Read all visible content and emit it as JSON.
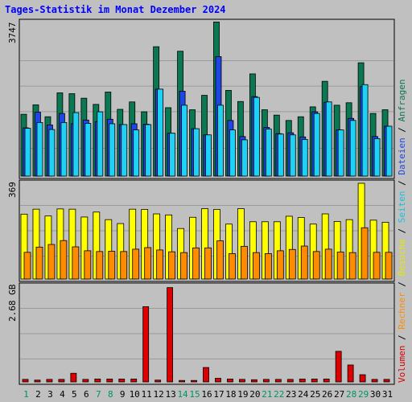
{
  "title": "Tages-Statistik im Monat Dezember 2024",
  "colors": {
    "background": "#c0c0c0",
    "title": "#0000ff",
    "anfragen": "#0a7850",
    "dateien": "#1e46e6",
    "seiten": "#1ed2f5",
    "besuche": "#ffff00",
    "rechner": "#ff8c00",
    "volumen": "#dc0000",
    "weekend_label": "#00935c",
    "weekday_label": "#000000"
  },
  "panel_labels": {
    "top_max": "3747",
    "mid_max": "369",
    "bottom_max": "2.68 GB"
  },
  "legend": {
    "volumen": "Volumen",
    "sep1": " / ",
    "rechner": "Rechner",
    "sep2": " / ",
    "besuche": "Besuche",
    "sep3": " / ",
    "seiten": "Seiten",
    "sep4": " / ",
    "dateien": "Dateien",
    "sep5": " / ",
    "anfragen": "Anfragen"
  },
  "chart_data": {
    "type": "bar",
    "title": "Tages-Statistik im Monat Dezember 2024",
    "categories": [
      "1",
      "2",
      "3",
      "4",
      "5",
      "6",
      "7",
      "8",
      "9",
      "10",
      "11",
      "12",
      "13",
      "14",
      "15",
      "16",
      "17",
      "18",
      "19",
      "20",
      "21",
      "22",
      "23",
      "24",
      "25",
      "26",
      "27",
      "28",
      "29",
      "30",
      "31"
    ],
    "weekend_days": [
      1,
      7,
      8,
      14,
      15,
      21,
      22,
      28,
      29
    ],
    "panels": [
      {
        "max_label": "3747",
        "ylim": [
          0,
          3747
        ],
        "series": [
          {
            "name": "Anfragen",
            "values": [
              1500,
              1730,
              1440,
              2020,
              2000,
              1890,
              1740,
              2040,
              1620,
              1800,
              1560,
              3140,
              1660,
              3030,
              1610,
              1960,
              3740,
              2080,
              1810,
              2480,
              1610,
              1480,
              1350,
              1440,
              1680,
              2300,
              1720,
              1780,
              2750,
              1520,
              1610
            ]
          },
          {
            "name": "Dateien",
            "values": [
              1170,
              1550,
              1240,
              1520,
              1270,
              1360,
              1320,
              1380,
              1250,
              1270,
              1260,
              2110,
              1040,
              2060,
              1150,
              1000,
              2900,
              1350,
              960,
              1930,
              1180,
              1030,
              1050,
              950,
              1560,
              1790,
              1120,
              1400,
              2170,
              960,
              1210
            ]
          },
          {
            "name": "Seiten",
            "values": [
              1160,
              1300,
              1130,
              1300,
              1540,
              1280,
              1560,
              1270,
              1250,
              1120,
              1250,
              2110,
              1040,
              1720,
              1150,
              1000,
              1720,
              1120,
              880,
              1910,
              1140,
              1020,
              1000,
              890,
              1520,
              1800,
              1120,
              1350,
              2220,
              910,
              1210
            ]
          }
        ]
      },
      {
        "max_label": "369",
        "ylim": [
          0,
          369
        ],
        "series": [
          {
            "name": "Besuche",
            "values": [
              248,
              267,
              241,
              268,
              267,
              237,
              256,
              227,
              212,
              267,
              266,
              249,
              245,
              193,
              236,
              269,
              266,
              210,
              269,
              219,
              219,
              219,
              240,
              235,
              210,
              249,
              220,
              227,
              366,
              225,
              217
            ]
          },
          {
            "name": "Rechner",
            "values": [
              102,
              122,
              132,
              147,
              123,
              108,
              105,
              106,
              105,
              114,
              120,
              111,
              104,
              101,
              119,
              119,
              146,
              97,
              125,
              101,
              97,
              108,
              113,
              126,
              105,
              114,
              103,
              101,
              196,
              102,
              102
            ]
          }
        ]
      },
      {
        "max_label": "2.68 GB",
        "ylim": [
          0,
          2.68
        ],
        "series": [
          {
            "name": "Volumen",
            "values": [
              0.07,
              0.05,
              0.07,
              0.07,
              0.24,
              0.07,
              0.08,
              0.08,
              0.08,
              0.08,
              2.09,
              0.05,
              2.62,
              0.04,
              0.04,
              0.4,
              0.1,
              0.08,
              0.07,
              0.06,
              0.07,
              0.07,
              0.07,
              0.08,
              0.08,
              0.08,
              0.85,
              0.47,
              0.2,
              0.07,
              0.07
            ]
          }
        ]
      }
    ]
  }
}
